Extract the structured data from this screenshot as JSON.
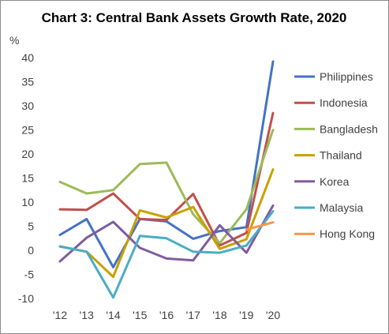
{
  "chart_data": {
    "type": "line",
    "title": "Chart 3: Central Bank Assets Growth Rate, 2020",
    "ylabel": "%",
    "xlabel": "",
    "categories": [
      "'12",
      "'13",
      "'14",
      "'15",
      "'16",
      "'17",
      "'18",
      "'19",
      "'20"
    ],
    "ylim": [
      -10,
      40
    ],
    "yticks": [
      -10,
      -5,
      0,
      5,
      10,
      15,
      20,
      25,
      30,
      35,
      40
    ],
    "grid": false,
    "legend": "right",
    "series": [
      {
        "name": "Philippines",
        "color": "#4472C4",
        "values": [
          3.2,
          6.5,
          -3.5,
          6.5,
          6.0,
          2.4,
          4.0,
          4.8,
          39.2
        ]
      },
      {
        "name": "Indonesia",
        "color": "#C0504D",
        "values": [
          8.5,
          8.4,
          11.8,
          6.5,
          6.3,
          11.7,
          1.0,
          3.6,
          28.5
        ]
      },
      {
        "name": "Bangladesh",
        "color": "#9BBB59",
        "values": [
          14.2,
          11.8,
          12.5,
          17.9,
          18.2,
          7.5,
          1.5,
          8.5,
          25.0
        ]
      },
      {
        "name": "Thailand",
        "color": "#C9A000",
        "values": [
          0.8,
          -0.3,
          -5.5,
          8.3,
          6.8,
          9.0,
          0.3,
          2.3,
          16.8
        ]
      },
      {
        "name": "Korea",
        "color": "#7F5CA0",
        "values": [
          -2.3,
          2.6,
          5.9,
          0.5,
          -1.7,
          -2.1,
          5.2,
          -0.5,
          9.3
        ]
      },
      {
        "name": "Malaysia",
        "color": "#4BACC6",
        "values": [
          0.8,
          -0.3,
          -9.8,
          3.0,
          2.5,
          -0.3,
          -0.5,
          1.0,
          8.1
        ]
      },
      {
        "name": "Hong Kong",
        "color": "#F79646",
        "values": [
          null,
          null,
          null,
          null,
          null,
          null,
          null,
          4.3,
          5.8
        ]
      }
    ]
  }
}
